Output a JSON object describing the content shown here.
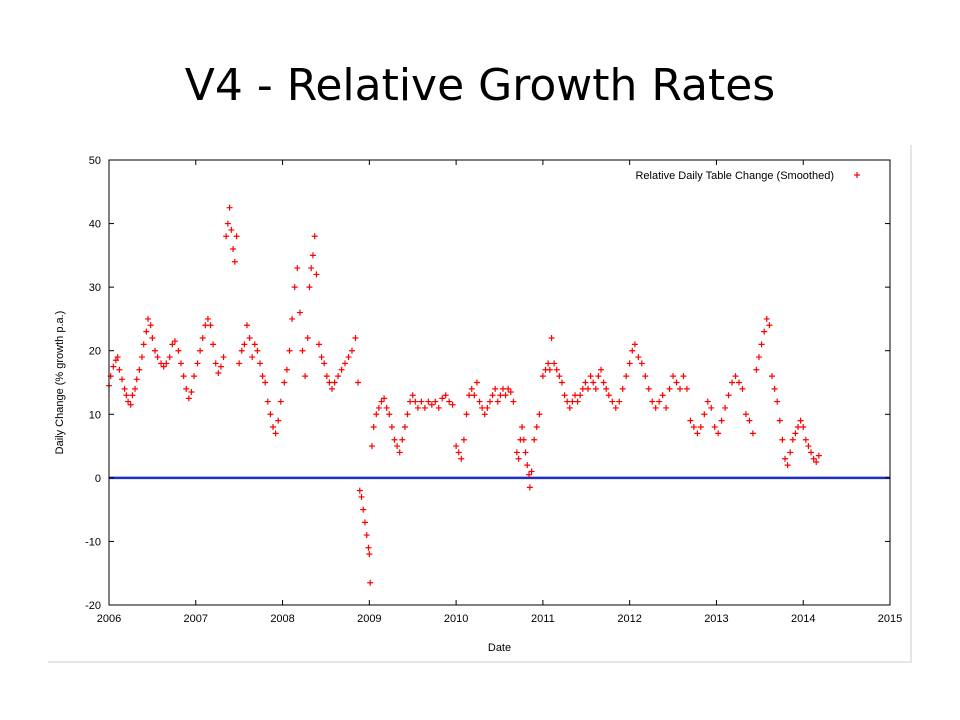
{
  "slide": {
    "title": "V4 - Relative Growth Rates"
  },
  "colors": {
    "marker": "#ff0000",
    "zero_line": "#1f2fbf"
  },
  "chart_data": {
    "type": "scatter",
    "title": "",
    "xlabel": "Date",
    "ylabel": "Daily Change (% growth p.a.)",
    "xlim": [
      2006,
      2015
    ],
    "ylim": [
      -20,
      50
    ],
    "x_ticks": [
      "2006",
      "2007",
      "2008",
      "2009",
      "2010",
      "2011",
      "2012",
      "2013",
      "2014",
      "2015"
    ],
    "y_ticks": [
      "-20",
      "-10",
      "0",
      "10",
      "20",
      "30",
      "40",
      "50"
    ],
    "grid": false,
    "legend_position": "top-right",
    "reference_lines": [
      {
        "y": 0
      }
    ],
    "series": [
      {
        "name": "Relative Daily Table Change (Smoothed)",
        "marker": "+",
        "points": [
          [
            2006.0,
            14.5
          ],
          [
            2006.02,
            16.0
          ],
          [
            2006.05,
            17.5
          ],
          [
            2006.08,
            18.5
          ],
          [
            2006.1,
            19.0
          ],
          [
            2006.12,
            17.0
          ],
          [
            2006.15,
            15.5
          ],
          [
            2006.18,
            14.0
          ],
          [
            2006.2,
            13.0
          ],
          [
            2006.22,
            12.0
          ],
          [
            2006.25,
            11.5
          ],
          [
            2006.27,
            13.0
          ],
          [
            2006.3,
            14.0
          ],
          [
            2006.32,
            15.5
          ],
          [
            2006.35,
            17.0
          ],
          [
            2006.38,
            19.0
          ],
          [
            2006.4,
            21.0
          ],
          [
            2006.43,
            23.0
          ],
          [
            2006.45,
            25.0
          ],
          [
            2006.48,
            24.0
          ],
          [
            2006.5,
            22.0
          ],
          [
            2006.53,
            20.0
          ],
          [
            2006.56,
            19.0
          ],
          [
            2006.6,
            18.0
          ],
          [
            2006.63,
            17.5
          ],
          [
            2006.66,
            18.0
          ],
          [
            2006.7,
            19.0
          ],
          [
            2006.73,
            21.0
          ],
          [
            2006.76,
            21.5
          ],
          [
            2006.8,
            20.0
          ],
          [
            2006.83,
            18.0
          ],
          [
            2006.86,
            16.0
          ],
          [
            2006.89,
            14.0
          ],
          [
            2006.92,
            12.5
          ],
          [
            2006.95,
            13.5
          ],
          [
            2006.98,
            16.0
          ],
          [
            2007.02,
            18.0
          ],
          [
            2007.05,
            20.0
          ],
          [
            2007.08,
            22.0
          ],
          [
            2007.11,
            24.0
          ],
          [
            2007.14,
            25.0
          ],
          [
            2007.17,
            24.0
          ],
          [
            2007.2,
            21.0
          ],
          [
            2007.23,
            18.0
          ],
          [
            2007.26,
            16.5
          ],
          [
            2007.29,
            17.5
          ],
          [
            2007.32,
            19.0
          ],
          [
            2007.35,
            38.0
          ],
          [
            2007.37,
            40.0
          ],
          [
            2007.39,
            42.5
          ],
          [
            2007.41,
            39.0
          ],
          [
            2007.43,
            36.0
          ],
          [
            2007.45,
            34.0
          ],
          [
            2007.47,
            38.0
          ],
          [
            2007.5,
            18.0
          ],
          [
            2007.53,
            20.0
          ],
          [
            2007.56,
            21.0
          ],
          [
            2007.59,
            24.0
          ],
          [
            2007.62,
            22.0
          ],
          [
            2007.65,
            19.0
          ],
          [
            2007.68,
            21.0
          ],
          [
            2007.71,
            20.0
          ],
          [
            2007.74,
            18.0
          ],
          [
            2007.77,
            16.0
          ],
          [
            2007.8,
            15.0
          ],
          [
            2007.83,
            12.0
          ],
          [
            2007.86,
            10.0
          ],
          [
            2007.89,
            8.0
          ],
          [
            2007.92,
            7.0
          ],
          [
            2007.95,
            9.0
          ],
          [
            2007.98,
            12.0
          ],
          [
            2008.02,
            15.0
          ],
          [
            2008.05,
            17.0
          ],
          [
            2008.08,
            20.0
          ],
          [
            2008.11,
            25.0
          ],
          [
            2008.14,
            30.0
          ],
          [
            2008.17,
            33.0
          ],
          [
            2008.2,
            26.0
          ],
          [
            2008.23,
            20.0
          ],
          [
            2008.26,
            16.0
          ],
          [
            2008.29,
            22.0
          ],
          [
            2008.31,
            30.0
          ],
          [
            2008.33,
            33.0
          ],
          [
            2008.35,
            35.0
          ],
          [
            2008.37,
            38.0
          ],
          [
            2008.39,
            32.0
          ],
          [
            2008.42,
            21.0
          ],
          [
            2008.45,
            19.0
          ],
          [
            2008.48,
            18.0
          ],
          [
            2008.51,
            16.0
          ],
          [
            2008.54,
            15.0
          ],
          [
            2008.57,
            14.0
          ],
          [
            2008.6,
            15.0
          ],
          [
            2008.64,
            16.0
          ],
          [
            2008.68,
            17.0
          ],
          [
            2008.72,
            18.0
          ],
          [
            2008.76,
            19.0
          ],
          [
            2008.8,
            20.0
          ],
          [
            2008.84,
            22.0
          ],
          [
            2008.87,
            15.0
          ],
          [
            2008.89,
            -2.0
          ],
          [
            2008.91,
            -3.0
          ],
          [
            2008.93,
            -5.0
          ],
          [
            2008.95,
            -7.0
          ],
          [
            2008.97,
            -9.0
          ],
          [
            2008.99,
            -11.0
          ],
          [
            2009.0,
            -12.0
          ],
          [
            2009.01,
            -16.5
          ],
          [
            2009.03,
            5.0
          ],
          [
            2009.05,
            8.0
          ],
          [
            2009.08,
            10.0
          ],
          [
            2009.11,
            11.0
          ],
          [
            2009.14,
            12.0
          ],
          [
            2009.17,
            12.5
          ],
          [
            2009.2,
            11.0
          ],
          [
            2009.23,
            10.0
          ],
          [
            2009.26,
            8.0
          ],
          [
            2009.29,
            6.0
          ],
          [
            2009.32,
            5.0
          ],
          [
            2009.35,
            4.0
          ],
          [
            2009.38,
            6.0
          ],
          [
            2009.41,
            8.0
          ],
          [
            2009.44,
            10.0
          ],
          [
            2009.47,
            12.0
          ],
          [
            2009.5,
            13.0
          ],
          [
            2009.53,
            12.0
          ],
          [
            2009.56,
            11.0
          ],
          [
            2009.6,
            12.0
          ],
          [
            2009.64,
            11.0
          ],
          [
            2009.68,
            12.0
          ],
          [
            2009.72,
            11.5
          ],
          [
            2009.76,
            12.0
          ],
          [
            2009.8,
            11.0
          ],
          [
            2009.84,
            12.5
          ],
          [
            2009.88,
            13.0
          ],
          [
            2009.92,
            12.0
          ],
          [
            2009.96,
            11.5
          ],
          [
            2010.0,
            5.0
          ],
          [
            2010.03,
            4.0
          ],
          [
            2010.06,
            3.0
          ],
          [
            2010.09,
            6.0
          ],
          [
            2010.12,
            10.0
          ],
          [
            2010.15,
            13.0
          ],
          [
            2010.18,
            14.0
          ],
          [
            2010.21,
            13.0
          ],
          [
            2010.24,
            15.0
          ],
          [
            2010.27,
            12.0
          ],
          [
            2010.3,
            11.0
          ],
          [
            2010.33,
            10.0
          ],
          [
            2010.36,
            11.0
          ],
          [
            2010.39,
            12.0
          ],
          [
            2010.42,
            13.0
          ],
          [
            2010.45,
            14.0
          ],
          [
            2010.48,
            12.0
          ],
          [
            2010.51,
            13.0
          ],
          [
            2010.54,
            14.0
          ],
          [
            2010.57,
            13.0
          ],
          [
            2010.6,
            14.0
          ],
          [
            2010.63,
            13.5
          ],
          [
            2010.66,
            12.0
          ],
          [
            2010.7,
            4.0
          ],
          [
            2010.72,
            3.0
          ],
          [
            2010.74,
            6.0
          ],
          [
            2010.76,
            8.0
          ],
          [
            2010.78,
            6.0
          ],
          [
            2010.8,
            4.0
          ],
          [
            2010.82,
            2.0
          ],
          [
            2010.84,
            0.5
          ],
          [
            2010.85,
            -1.5
          ],
          [
            2010.87,
            1.0
          ],
          [
            2010.9,
            6.0
          ],
          [
            2010.93,
            8.0
          ],
          [
            2010.96,
            10.0
          ],
          [
            2011.0,
            16.0
          ],
          [
            2011.03,
            17.0
          ],
          [
            2011.06,
            18.0
          ],
          [
            2011.08,
            17.0
          ],
          [
            2011.1,
            22.0
          ],
          [
            2011.13,
            18.0
          ],
          [
            2011.16,
            17.0
          ],
          [
            2011.19,
            16.0
          ],
          [
            2011.22,
            15.0
          ],
          [
            2011.25,
            13.0
          ],
          [
            2011.28,
            12.0
          ],
          [
            2011.31,
            11.0
          ],
          [
            2011.34,
            12.0
          ],
          [
            2011.37,
            13.0
          ],
          [
            2011.4,
            12.0
          ],
          [
            2011.43,
            13.0
          ],
          [
            2011.46,
            14.0
          ],
          [
            2011.49,
            15.0
          ],
          [
            2011.52,
            14.0
          ],
          [
            2011.55,
            16.0
          ],
          [
            2011.58,
            15.0
          ],
          [
            2011.61,
            14.0
          ],
          [
            2011.64,
            16.0
          ],
          [
            2011.67,
            17.0
          ],
          [
            2011.7,
            15.0
          ],
          [
            2011.73,
            14.0
          ],
          [
            2011.76,
            13.0
          ],
          [
            2011.8,
            12.0
          ],
          [
            2011.84,
            11.0
          ],
          [
            2011.88,
            12.0
          ],
          [
            2011.92,
            14.0
          ],
          [
            2011.96,
            16.0
          ],
          [
            2012.0,
            18.0
          ],
          [
            2012.03,
            20.0
          ],
          [
            2012.06,
            21.0
          ],
          [
            2012.1,
            19.0
          ],
          [
            2012.14,
            18.0
          ],
          [
            2012.18,
            16.0
          ],
          [
            2012.22,
            14.0
          ],
          [
            2012.26,
            12.0
          ],
          [
            2012.3,
            11.0
          ],
          [
            2012.34,
            12.0
          ],
          [
            2012.38,
            13.0
          ],
          [
            2012.42,
            11.0
          ],
          [
            2012.46,
            14.0
          ],
          [
            2012.5,
            16.0
          ],
          [
            2012.54,
            15.0
          ],
          [
            2012.58,
            14.0
          ],
          [
            2012.62,
            16.0
          ],
          [
            2012.66,
            14.0
          ],
          [
            2012.7,
            9.0
          ],
          [
            2012.74,
            8.0
          ],
          [
            2012.78,
            7.0
          ],
          [
            2012.82,
            8.0
          ],
          [
            2012.86,
            10.0
          ],
          [
            2012.9,
            12.0
          ],
          [
            2012.94,
            11.0
          ],
          [
            2012.98,
            8.0
          ],
          [
            2013.02,
            7.0
          ],
          [
            2013.06,
            9.0
          ],
          [
            2013.1,
            11.0
          ],
          [
            2013.14,
            13.0
          ],
          [
            2013.18,
            15.0
          ],
          [
            2013.22,
            16.0
          ],
          [
            2013.26,
            15.0
          ],
          [
            2013.3,
            14.0
          ],
          [
            2013.34,
            10.0
          ],
          [
            2013.38,
            9.0
          ],
          [
            2013.42,
            7.0
          ],
          [
            2013.46,
            17.0
          ],
          [
            2013.49,
            19.0
          ],
          [
            2013.52,
            21.0
          ],
          [
            2013.55,
            23.0
          ],
          [
            2013.58,
            25.0
          ],
          [
            2013.61,
            24.0
          ],
          [
            2013.64,
            16.0
          ],
          [
            2013.67,
            14.0
          ],
          [
            2013.7,
            12.0
          ],
          [
            2013.73,
            9.0
          ],
          [
            2013.76,
            6.0
          ],
          [
            2013.79,
            3.0
          ],
          [
            2013.82,
            2.0
          ],
          [
            2013.85,
            4.0
          ],
          [
            2013.88,
            6.0
          ],
          [
            2013.91,
            7.0
          ],
          [
            2013.94,
            8.0
          ],
          [
            2013.97,
            9.0
          ],
          [
            2014.0,
            8.0
          ],
          [
            2014.03,
            6.0
          ],
          [
            2014.06,
            5.0
          ],
          [
            2014.09,
            4.0
          ],
          [
            2014.12,
            3.0
          ],
          [
            2014.15,
            2.5
          ],
          [
            2014.18,
            3.5
          ]
        ]
      }
    ]
  }
}
